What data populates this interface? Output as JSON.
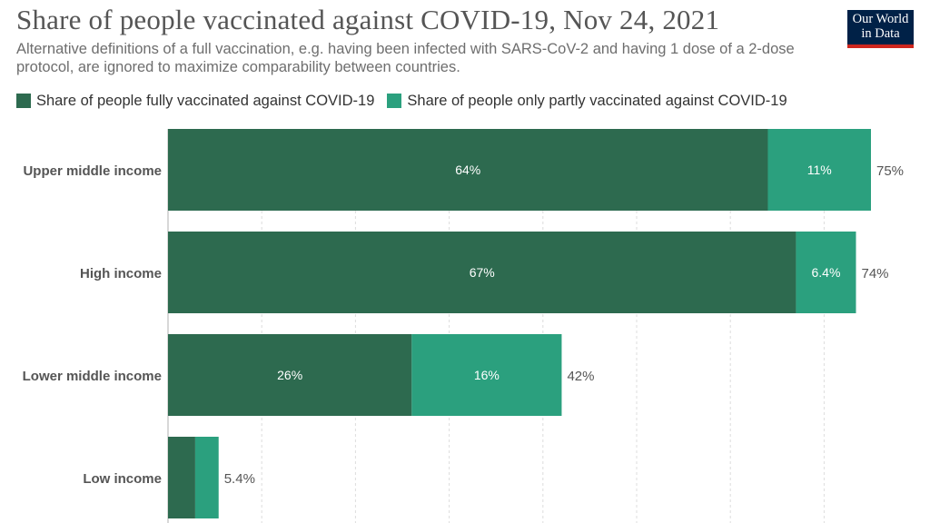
{
  "title": "Share of people vaccinated against COVID-19, Nov 24, 2021",
  "subtitle": "Alternative definitions of a full vaccination, e.g. having been infected with SARS-CoV-2 and having 1 dose of a 2-dose protocol, are ignored to maximize comparability between countries.",
  "logo": {
    "line1": "Our World",
    "line2": "in Data",
    "background": "#002147",
    "accent": "#ce261e"
  },
  "chart_data": {
    "type": "bar",
    "orientation": "horizontal",
    "stacked": true,
    "categories": [
      "Upper middle income",
      "High income",
      "Lower middle income",
      "Low income"
    ],
    "series": [
      {
        "name": "Share of people fully vaccinated against COVID-19",
        "color": "#2d6a4f",
        "values": [
          64,
          67,
          26,
          2.9
        ],
        "labels": [
          "64%",
          "67%",
          "26%",
          ""
        ]
      },
      {
        "name": "Share of people only partly vaccinated against COVID-19",
        "color": "#2ba07e",
        "values": [
          11,
          6.4,
          16,
          2.5
        ],
        "labels": [
          "11%",
          "6.4%",
          "16%",
          ""
        ]
      }
    ],
    "totals": [
      "75%",
      "74%",
      "42%",
      "5.4%"
    ],
    "xlim": [
      0,
      80
    ],
    "grid": true,
    "legend": "top-left"
  }
}
